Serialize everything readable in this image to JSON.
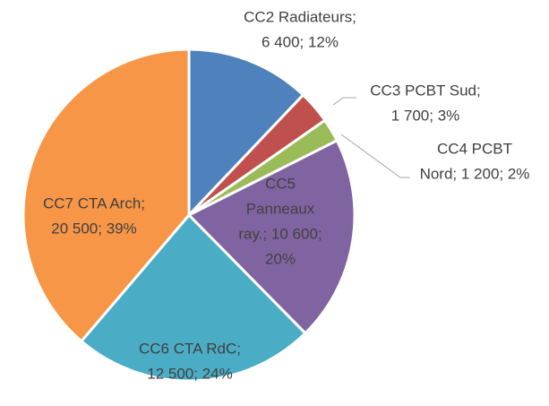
{
  "chart_data": {
    "type": "pie",
    "categories": [
      "CC2 Radiateurs",
      "CC3 PCBT Sud",
      "CC4 PCBT Nord",
      "CC5 Panneaux ray.",
      "CC6 CTA RdC",
      "CC7 CTA Arch"
    ],
    "values": [
      6400,
      1700,
      1200,
      10600,
      12500,
      20500
    ],
    "labels": [
      [
        "CC2 Radiateurs;",
        "6 400; 12%"
      ],
      [
        "CC3 PCBT Sud;",
        "1 700; 3%"
      ],
      [
        "CC4 PCBT",
        "Nord; 1 200; 2%"
      ],
      [
        "CC5",
        "Panneaux",
        "ray.; 10 600;",
        "20%"
      ],
      [
        "CC6 CTA RdC;",
        "12 500; 24%"
      ],
      [
        "CC7 CTA Arch;",
        "20 500; 39%"
      ]
    ],
    "colors": [
      "#4f81bd",
      "#c0504d",
      "#9bbb59",
      "#8064a2",
      "#4bacc6",
      "#f79646"
    ]
  }
}
